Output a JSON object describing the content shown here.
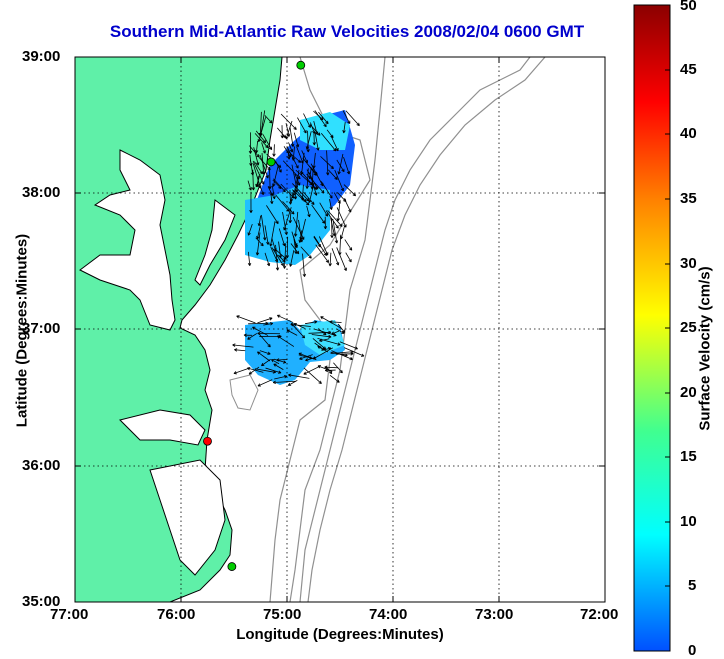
{
  "title": "Southern Mid-Atlantic Raw Velocities 2008/02/04 0600 GMT",
  "xlabel": "Longitude (Degrees:Minutes)",
  "ylabel": "Latitude (Degrees:Minutes)",
  "x_ticks": [
    "77:00",
    "76:00",
    "75:00",
    "74:00",
    "73:00",
    "72:00"
  ],
  "y_ticks": [
    "39:00",
    "38:00",
    "37:00",
    "36:00",
    "35:00"
  ],
  "colorbar": {
    "label": "Surface Velocity (cm/s)",
    "ticks": [
      "50",
      "45",
      "40",
      "35",
      "30",
      "25",
      "20",
      "15",
      "10",
      "5",
      "0"
    ],
    "colors": [
      "#0000ff",
      "#00ffff",
      "#00ff80",
      "#ffff00",
      "#ff8000",
      "#ff0000",
      "#800000"
    ]
  },
  "colors": {
    "land": "#5ff0a8",
    "water": "#ffffff",
    "coastline": "#000000",
    "bathymetry": "#909090",
    "title": "#0000cc",
    "arrows": "#000000"
  },
  "stations": [
    {
      "lon": -74.87,
      "lat": 38.94,
      "color": "#00cc00"
    },
    {
      "lon": -75.15,
      "lat": 38.23,
      "color": "#00cc00"
    },
    {
      "lon": -75.75,
      "lat": 36.18,
      "color": "#ff0000"
    },
    {
      "lon": -75.52,
      "lat": 35.26,
      "color": "#00cc00"
    }
  ]
}
